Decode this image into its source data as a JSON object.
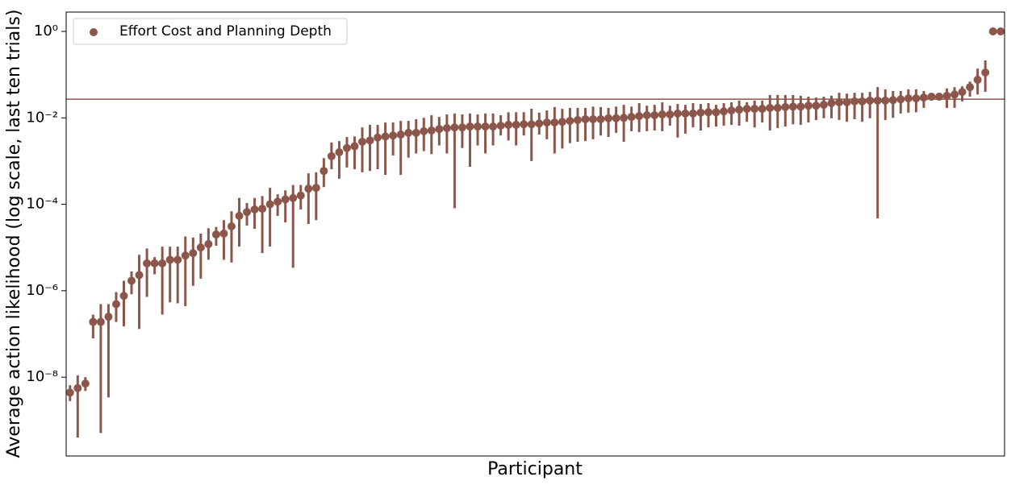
{
  "chart_data": {
    "type": "scatter",
    "xlabel": "Participant",
    "ylabel": "Average action likelihood (log scale, last ten trials)",
    "yscale": "log",
    "ylim": [
      1.5e-10,
      2.8
    ],
    "yticks": [
      {
        "value": 1,
        "label": "10⁰"
      },
      {
        "value": 0.01,
        "label": "10⁻²"
      },
      {
        "value": 0.0001,
        "label": "10⁻⁴"
      },
      {
        "value": 1e-06,
        "label": "10⁻⁶"
      },
      {
        "value": 1e-08,
        "label": "10⁻⁸"
      }
    ],
    "hline": 0.027,
    "legend": "upper left",
    "series": [
      {
        "name": "Effort Cost and Planning Depth",
        "color": "#8c564b",
        "values": [
          4.4e-09,
          5.6e-09,
          7.1e-09,
          1.9e-07,
          1.9e-07,
          2.5e-07,
          4.9e-07,
          7.6e-07,
          1.7e-06,
          2.3e-06,
          4.3e-06,
          4.3e-06,
          4.3e-06,
          5.2e-06,
          5.2e-06,
          6.5e-06,
          7.4e-06,
          1e-05,
          1.2e-05,
          2e-05,
          2.1e-05,
          3.1e-05,
          5.4e-05,
          6.6e-05,
          7.6e-05,
          7.9e-05,
          0.0001,
          0.000115,
          0.00013,
          0.00014,
          0.00016,
          0.00023,
          0.00024,
          0.00059,
          0.0013,
          0.0016,
          0.002,
          0.0022,
          0.0028,
          0.003,
          0.0035,
          0.0037,
          0.0039,
          0.0041,
          0.0045,
          0.0045,
          0.0049,
          0.0051,
          0.0055,
          0.0058,
          0.006,
          0.006,
          0.0063,
          0.0063,
          0.0063,
          0.0063,
          0.0066,
          0.0069,
          0.0069,
          0.0071,
          0.0071,
          0.0074,
          0.0078,
          0.0078,
          0.0081,
          0.0085,
          0.0089,
          0.0093,
          0.0093,
          0.0093,
          0.0098,
          0.0098,
          0.01,
          0.0105,
          0.011,
          0.0115,
          0.0115,
          0.012,
          0.012,
          0.0126,
          0.0126,
          0.0126,
          0.0132,
          0.0135,
          0.0135,
          0.0141,
          0.0148,
          0.0155,
          0.0162,
          0.0162,
          0.0162,
          0.017,
          0.017,
          0.0178,
          0.0182,
          0.0182,
          0.0191,
          0.0191,
          0.02,
          0.0219,
          0.0229,
          0.0229,
          0.024,
          0.024,
          0.0251,
          0.0251,
          0.0251,
          0.0257,
          0.0269,
          0.0282,
          0.0282,
          0.0295,
          0.0309,
          0.0309,
          0.0324,
          0.0347,
          0.0398,
          0.0513,
          0.0759,
          0.112,
          1,
          1
        ],
        "lower": [
          2.8e-09,
          4e-10,
          4.8e-09,
          7.9e-08,
          5.1e-10,
          3.4e-09,
          1.9e-07,
          1.5e-07,
          8.3e-07,
          1.3e-07,
          7.2e-07,
          2.4e-06,
          2.8e-07,
          5.4e-07,
          5.1e-07,
          4.4e-07,
          1.3e-06,
          1.9e-06,
          5.2e-06,
          1.1e-05,
          5.2e-06,
          4.5e-06,
          1.05e-05,
          3.2e-05,
          2.7e-05,
          7.4e-06,
          1.05e-05,
          5.4e-05,
          3.8e-05,
          3.4e-06,
          7.6e-05,
          3.5e-05,
          4.3e-05,
          0.00025,
          0.00065,
          0.00039,
          0.00071,
          0.00065,
          0.00055,
          0.00059,
          0.00065,
          0.00048,
          0.00135,
          0.00048,
          0.0012,
          0.0015,
          0.0017,
          0.00145,
          0.0023,
          0.0015,
          8.1e-05,
          0.002,
          0.00074,
          0.0023,
          0.0015,
          0.0023,
          0.0039,
          0.003,
          0.0023,
          0.0039,
          0.001,
          0.0041,
          0.0032,
          0.0015,
          0.00195,
          0.0026,
          0.0028,
          0.0029,
          0.0032,
          0.0039,
          0.0036,
          0.0045,
          0.0028,
          0.0049,
          0.0047,
          0.0049,
          0.0051,
          0.0049,
          0.0066,
          0.0035,
          0.0043,
          0.006,
          0.0051,
          0.006,
          0.0063,
          0.0066,
          0.0069,
          0.0066,
          0.0081,
          0.006,
          0.0078,
          0.0051,
          0.0058,
          0.0063,
          0.0071,
          0.0069,
          0.0078,
          0.0089,
          0.0098,
          0.0098,
          0.0089,
          0.0081,
          0.0093,
          0.0081,
          0.0098,
          4.7e-05,
          0.0089,
          0.01,
          0.0126,
          0.0132,
          0.0135,
          0.017,
          0.0251,
          0.0257,
          0.017,
          0.017,
          0.024,
          0.0309,
          0.0347,
          0.0398,
          null,
          null
        ],
        "upper": [
          6.5e-09,
          1.1e-08,
          1e-08,
          2.8e-07,
          4.9e-07,
          4.9e-07,
          9.3e-07,
          1.7e-06,
          2.8e-06,
          6.8e-06,
          9.5e-06,
          6e-06,
          1.05e-05,
          1.05e-05,
          1.05e-05,
          1.8e-05,
          1.7e-05,
          2.1e-05,
          2.8e-05,
          3e-05,
          4.3e-05,
          6.9e-05,
          0.00014,
          0.000107,
          0.00014,
          0.000155,
          0.00024,
          0.00017,
          0.00021,
          0.00028,
          0.00028,
          0.00052,
          0.00055,
          0.00117,
          0.0027,
          0.0029,
          0.0036,
          0.0037,
          0.006,
          0.0069,
          0.0069,
          0.0078,
          0.0078,
          0.0085,
          0.0085,
          0.0093,
          0.01,
          0.0115,
          0.0105,
          0.012,
          0.0126,
          0.012,
          0.0126,
          0.012,
          0.0126,
          0.0126,
          0.0115,
          0.0135,
          0.0135,
          0.0135,
          0.0162,
          0.0132,
          0.0148,
          0.0178,
          0.0162,
          0.017,
          0.017,
          0.017,
          0.0182,
          0.0178,
          0.017,
          0.0182,
          0.02,
          0.0182,
          0.0219,
          0.0191,
          0.02,
          0.0229,
          0.0191,
          0.0209,
          0.02,
          0.0219,
          0.0209,
          0.0219,
          0.02,
          0.0219,
          0.0229,
          0.0251,
          0.0229,
          0.0251,
          0.0251,
          0.0339,
          0.0339,
          0.0339,
          0.0339,
          0.0324,
          0.0309,
          0.0295,
          0.0309,
          0.0324,
          0.038,
          0.0363,
          0.038,
          0.038,
          0.0398,
          0.0513,
          0.0457,
          0.0417,
          0.0417,
          0.0457,
          0.0457,
          0.0417,
          0.0347,
          0.0339,
          0.0479,
          0.0513,
          0.0537,
          0.0692,
          0.138,
          0.214,
          null,
          null
        ]
      }
    ]
  }
}
